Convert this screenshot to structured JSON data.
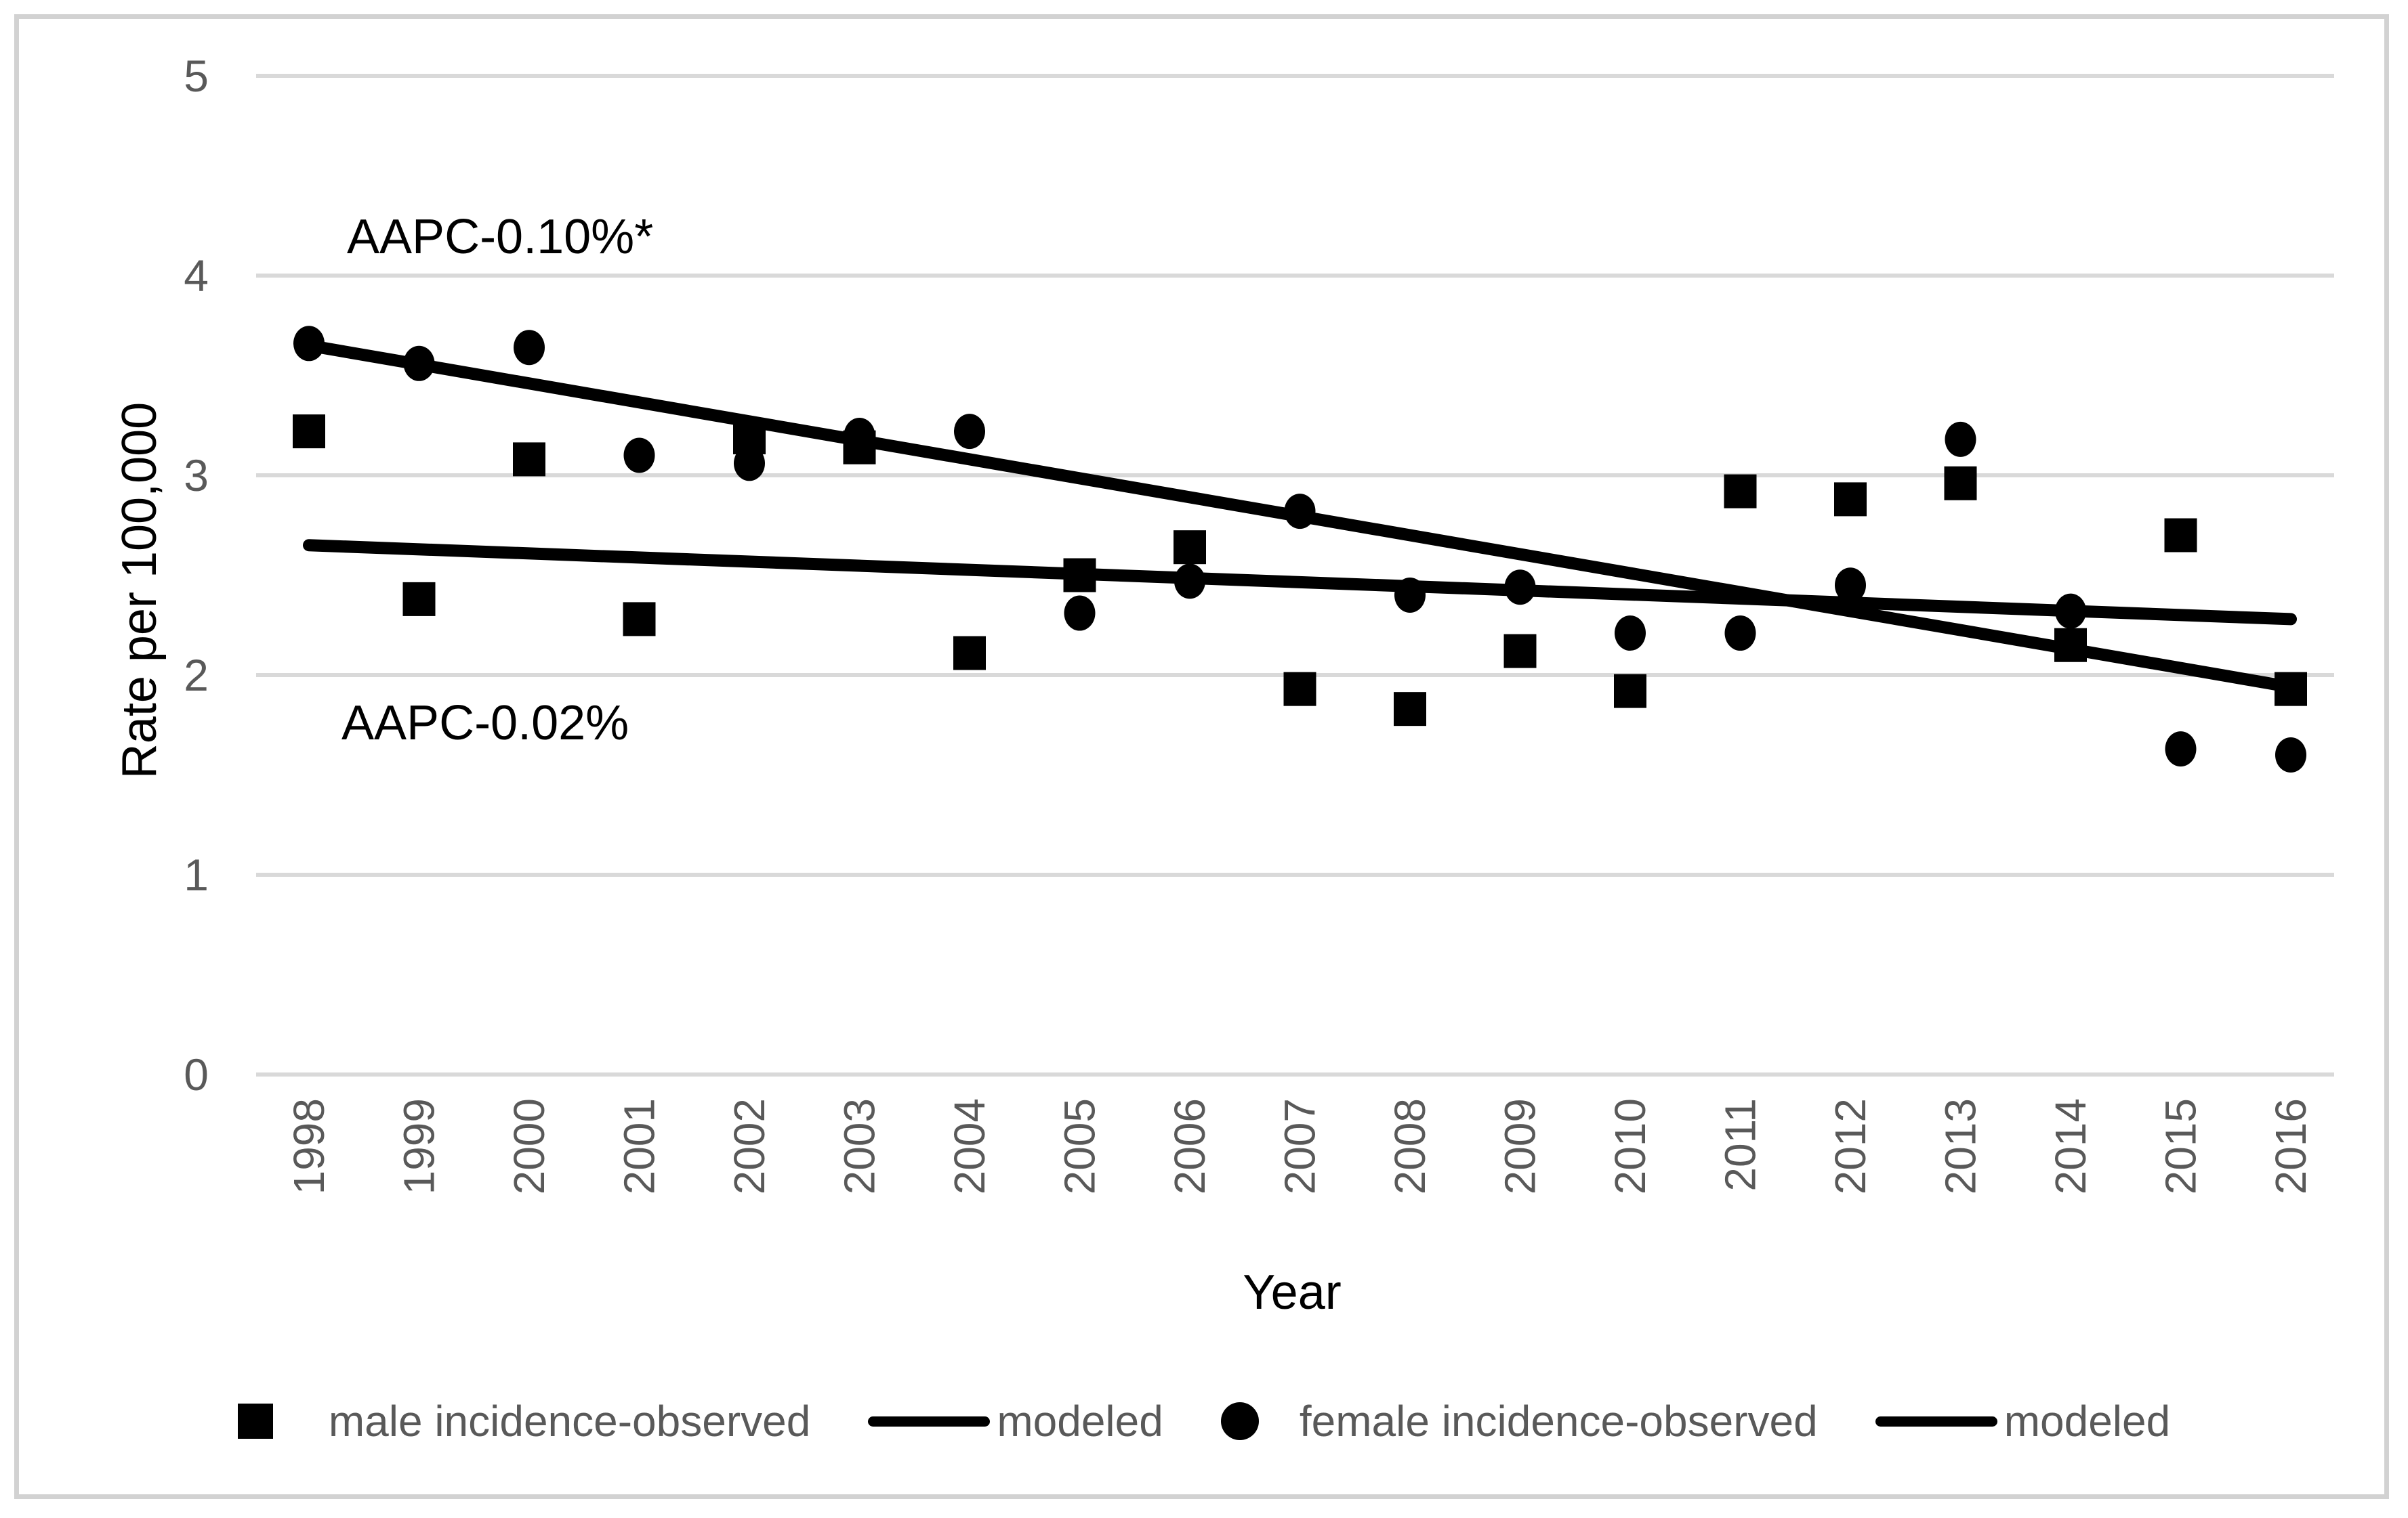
{
  "figure": {
    "background_color": "#ffffff",
    "border_color": "#d2d2d2",
    "gridline_color": "#d9d9d9",
    "tick_text_color": "#595959",
    "title_text_color": "#000000",
    "series_color": "#000000"
  },
  "chart_data": {
    "type": "scatter",
    "title": "",
    "xlabel": "Year",
    "ylabel": "Rate per 100,000",
    "ylim": [
      0,
      5
    ],
    "yticks": [
      5,
      4,
      3,
      2,
      1,
      0
    ],
    "grid": "horizontal",
    "legend_position": "bottom",
    "categories": [
      "1998",
      "1999",
      "2000",
      "2001",
      "2002",
      "2003",
      "2004",
      "2005",
      "2006",
      "2007",
      "2008",
      "2009",
      "2010",
      "2011",
      "2012",
      "2013",
      "2014",
      "2015",
      "2016"
    ],
    "series": [
      {
        "name": "male incidence-observed",
        "type": "scatter",
        "marker": "square",
        "color": "#000000",
        "values": [
          3.22,
          2.38,
          3.08,
          2.28,
          3.19,
          3.14,
          2.11,
          2.5,
          2.64,
          1.93,
          1.83,
          2.12,
          1.92,
          2.92,
          2.88,
          2.96,
          2.15,
          2.7,
          1.93
        ]
      },
      {
        "name": "modeled",
        "type": "line",
        "color": "#000000",
        "trend": {
          "start_year": "1998",
          "start_value": 2.65,
          "end_year": "2016",
          "end_value": 2.28
        }
      },
      {
        "name": "female incidence-observed",
        "type": "scatter",
        "marker": "circle",
        "color": "#000000",
        "values": [
          3.66,
          3.56,
          3.64,
          3.1,
          3.06,
          3.2,
          3.22,
          2.31,
          2.47,
          2.82,
          2.4,
          2.44,
          2.21,
          2.21,
          2.45,
          3.18,
          2.32,
          1.63,
          1.6
        ]
      },
      {
        "name": "modeled",
        "type": "line",
        "color": "#000000",
        "trend": {
          "start_year": "1998",
          "start_value": 3.65,
          "end_year": "2016",
          "end_value": 1.94
        }
      }
    ],
    "annotations": [
      {
        "text": "AAPC-0.10%*",
        "near_series": "female modeled",
        "x_year": "1998",
        "y_value": 4.15
      },
      {
        "text": "AAPC-0.02%",
        "near_series": "male modeled",
        "x_year": "1998",
        "y_value": 1.77
      }
    ],
    "legend": [
      {
        "label": "male incidence-observed",
        "marker": "square"
      },
      {
        "label": "modeled",
        "marker": "line"
      },
      {
        "label": "female incidence-observed",
        "marker": "circle"
      },
      {
        "label": "modeled",
        "marker": "line"
      }
    ]
  }
}
